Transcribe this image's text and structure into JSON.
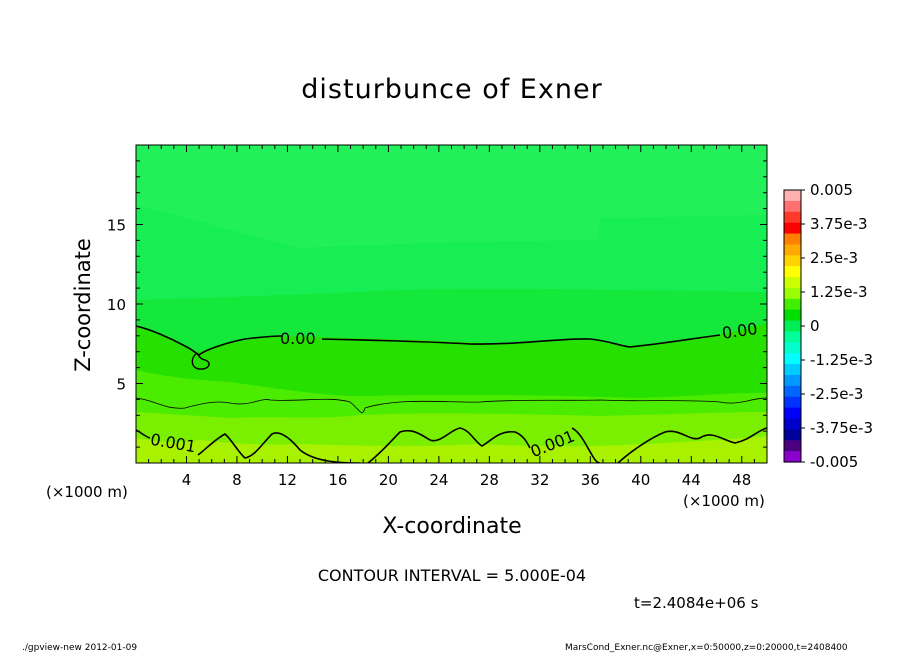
{
  "chart_data": {
    "type": "heatmap",
    "title": "disturbunce of Exner",
    "xlabel": "X-coordinate",
    "ylabel": "Z-coordinate",
    "x_units": "(×1000 m)",
    "xlim": [
      0,
      50
    ],
    "ylim": [
      0,
      20
    ],
    "x_ticks": [
      4,
      8,
      12,
      16,
      20,
      24,
      28,
      32,
      36,
      40,
      44,
      48
    ],
    "y_ticks": [
      5,
      10,
      15
    ],
    "colorbar": {
      "labels": [
        "0.005",
        "3.75e-3",
        "2.5e-3",
        "1.25e-3",
        "0",
        "-1.25e-3",
        "-2.5e-3",
        "-3.75e-3",
        "-0.005"
      ],
      "values": [
        0.005,
        0.00375,
        0.0025,
        0.00125,
        0,
        -0.00125,
        -0.0025,
        -0.00375,
        -0.005
      ],
      "colors": [
        "#ffb0b0",
        "#ff7070",
        "#ff3a2a",
        "#ff0000",
        "#ff7f00",
        "#ffaa00",
        "#ffd200",
        "#ffff00",
        "#ccff00",
        "#99ff00",
        "#44ee00",
        "#00dd00",
        "#00ee55",
        "#00ff99",
        "#00ffcc",
        "#00ffff",
        "#00ccff",
        "#0099ff",
        "#0066ff",
        "#0033ff",
        "#0000ff",
        "#0000cc",
        "#00009a",
        "#4b0082",
        "#8a00cc"
      ]
    },
    "contour_labels": [
      {
        "text": "0.00",
        "x": 12.8,
        "y": 7.8
      },
      {
        "text": "0.00",
        "x": 46.5,
        "y": 8.1
      },
      {
        "text": "0.001",
        "x": 2.0,
        "y": 1.3
      },
      {
        "text": "0.001",
        "x": 32.5,
        "y": 1.6
      }
    ],
    "contour_interval": "CONTOUR INTERVAL = 5.000E-04",
    "time": "t=2.4084e+06 s"
  },
  "footer": {
    "left": "./gpview-new   2012-01-09",
    "right": "MarsCond_Exner.nc@Exner,x=0:50000,z=0:20000,t=2408400"
  }
}
